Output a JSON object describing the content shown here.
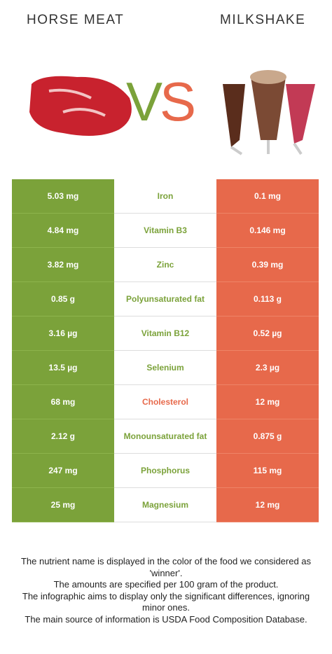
{
  "header": {
    "left_title": "HORSE MEAT",
    "right_title": "MILKSHAKE",
    "vs": [
      "V",
      "S"
    ]
  },
  "colors": {
    "left": "#7ba23a",
    "right": "#e7694b",
    "left_text": "#7ba23a",
    "right_text": "#e7694b"
  },
  "table": {
    "rows": [
      {
        "left": "5.03 mg",
        "nutrient": "Iron",
        "right": "0.1 mg",
        "winner": "left"
      },
      {
        "left": "4.84 mg",
        "nutrient": "Vitamin B3",
        "right": "0.146 mg",
        "winner": "left"
      },
      {
        "left": "3.82 mg",
        "nutrient": "Zinc",
        "right": "0.39 mg",
        "winner": "left"
      },
      {
        "left": "0.85 g",
        "nutrient": "Polyunsaturated fat",
        "right": "0.113 g",
        "winner": "left"
      },
      {
        "left": "3.16 µg",
        "nutrient": "Vitamin B12",
        "right": "0.52 µg",
        "winner": "left"
      },
      {
        "left": "13.5 µg",
        "nutrient": "Selenium",
        "right": "2.3 µg",
        "winner": "left"
      },
      {
        "left": "68 mg",
        "nutrient": "Cholesterol",
        "right": "12 mg",
        "winner": "right"
      },
      {
        "left": "2.12 g",
        "nutrient": "Monounsaturated fat",
        "right": "0.875 g",
        "winner": "left"
      },
      {
        "left": "247 mg",
        "nutrient": "Phosphorus",
        "right": "115 mg",
        "winner": "left"
      },
      {
        "left": "25 mg",
        "nutrient": "Magnesium",
        "right": "12 mg",
        "winner": "left"
      }
    ]
  },
  "footer": {
    "lines": [
      "The nutrient name is displayed in the color of the food we considered as 'winner'.",
      "The amounts are specified per 100 gram of the product.",
      "The infographic aims to display only the significant differences, ignoring minor ones.",
      "The main source of information is USDA Food Composition Database."
    ]
  }
}
